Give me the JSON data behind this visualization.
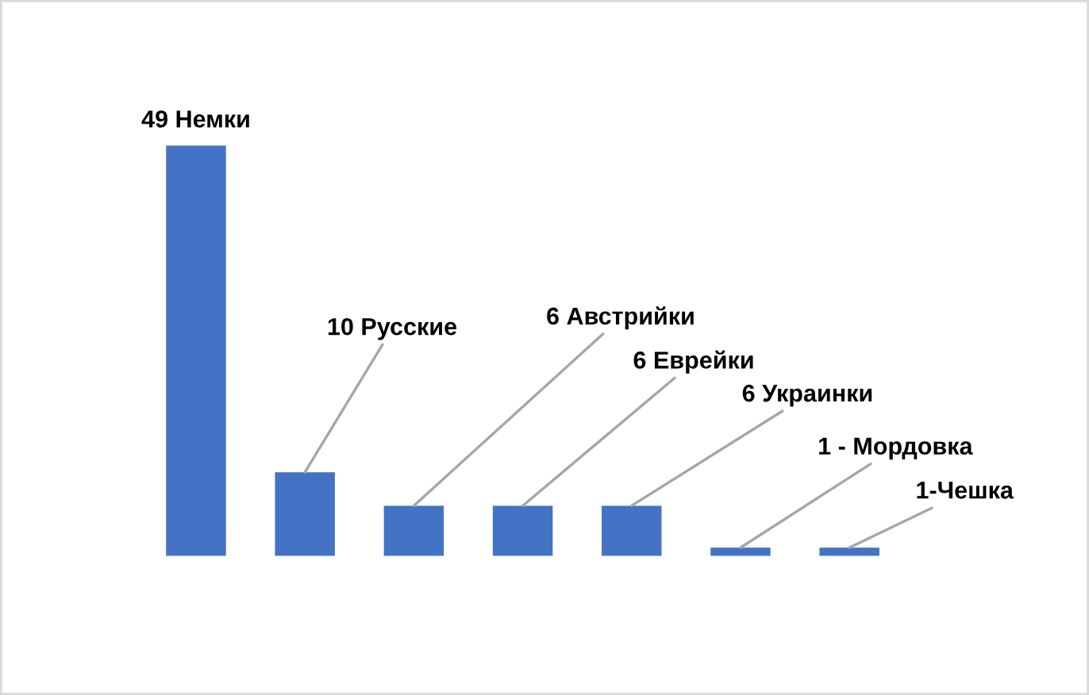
{
  "chart_data": {
    "type": "bar",
    "categories": [
      null,
      null,
      null,
      null,
      null,
      null,
      null
    ],
    "values": [
      49,
      10,
      6,
      6,
      6,
      1,
      1
    ],
    "value_labels": [
      "49 Немки",
      "10 Русские",
      "6 Австрийки",
      "6 Еврейки",
      "6 Украинки",
      "1 - Мордовка",
      "1-Чешка"
    ],
    "color": "#4472c4",
    "grid": false,
    "legend": false
  }
}
